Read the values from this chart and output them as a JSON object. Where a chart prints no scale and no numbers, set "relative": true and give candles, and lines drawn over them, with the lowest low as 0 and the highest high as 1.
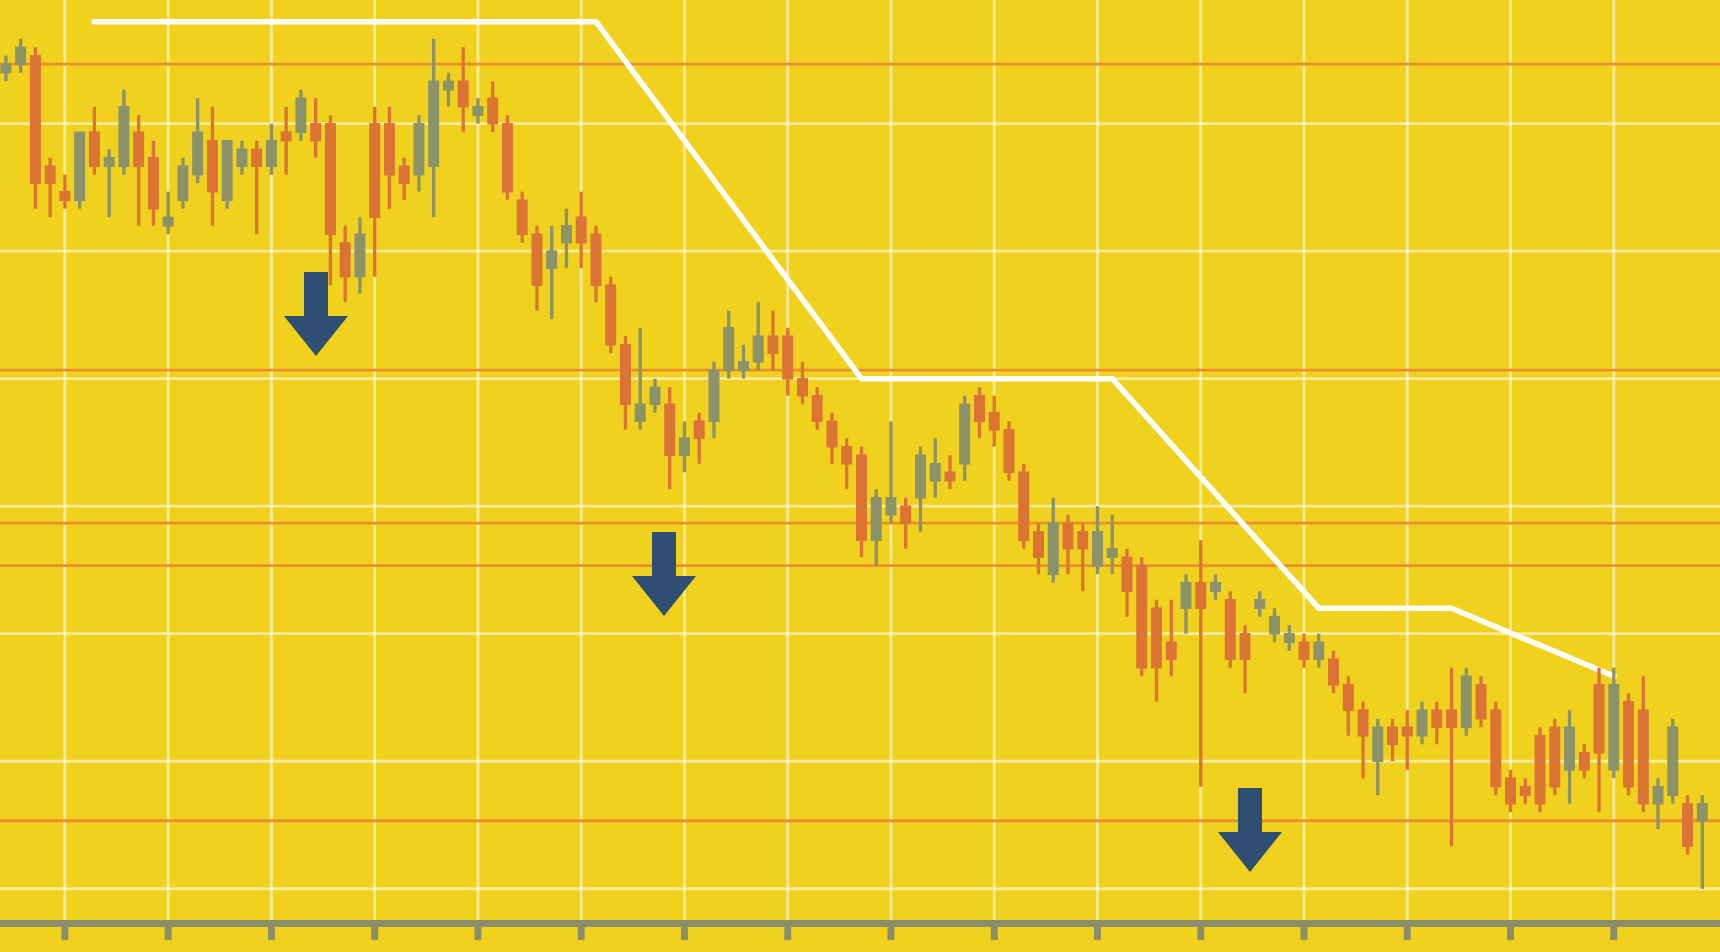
{
  "chart_data": {
    "type": "candlestick",
    "relative": true,
    "grid": true,
    "categories": [
      null,
      null,
      null,
      null,
      null,
      null,
      null,
      null,
      null,
      null,
      null,
      null,
      null,
      null,
      null,
      null,
      null,
      null,
      null,
      null,
      null,
      null,
      null,
      null,
      null,
      null,
      null,
      null,
      null,
      null,
      null,
      null,
      null,
      null,
      null,
      null,
      null,
      null,
      null,
      null,
      null,
      null,
      null,
      null,
      null,
      null,
      null,
      null,
      null,
      null,
      null,
      null,
      null,
      null,
      null,
      null,
      null,
      null,
      null,
      null,
      null,
      null,
      null,
      null,
      null,
      null,
      null,
      null,
      null,
      null,
      null,
      null,
      null,
      null,
      null,
      null,
      null,
      null,
      null,
      null,
      null,
      null,
      null,
      null,
      null,
      null,
      null,
      null,
      null,
      null,
      null,
      null,
      null,
      null,
      null,
      null,
      null,
      null,
      null,
      null,
      null,
      null,
      null,
      null,
      null,
      null,
      null,
      null,
      null,
      null,
      null,
      null,
      null,
      null,
      null,
      null
    ],
    "ohlc": [
      [
        0.96,
        0.98,
        0.95,
        0.97
      ],
      [
        0.97,
        1.0,
        0.96,
        0.99
      ],
      [
        0.98,
        0.99,
        0.8,
        0.83
      ],
      [
        0.85,
        0.86,
        0.79,
        0.83
      ],
      [
        0.82,
        0.84,
        0.8,
        0.81
      ],
      [
        0.81,
        0.89,
        0.8,
        0.89
      ],
      [
        0.89,
        0.92,
        0.84,
        0.85
      ],
      [
        0.85,
        0.87,
        0.79,
        0.86
      ],
      [
        0.85,
        0.94,
        0.84,
        0.92
      ],
      [
        0.89,
        0.91,
        0.78,
        0.85
      ],
      [
        0.86,
        0.88,
        0.78,
        0.8
      ],
      [
        0.78,
        0.82,
        0.77,
        0.79
      ],
      [
        0.81,
        0.86,
        0.8,
        0.85
      ],
      [
        0.84,
        0.93,
        0.83,
        0.89
      ],
      [
        0.88,
        0.92,
        0.78,
        0.82
      ],
      [
        0.81,
        0.88,
        0.8,
        0.88
      ],
      [
        0.85,
        0.88,
        0.84,
        0.87
      ],
      [
        0.87,
        0.88,
        0.77,
        0.85
      ],
      [
        0.85,
        0.9,
        0.84,
        0.88
      ],
      [
        0.89,
        0.92,
        0.84,
        0.88
      ],
      [
        0.89,
        0.94,
        0.88,
        0.93
      ],
      [
        0.9,
        0.93,
        0.86,
        0.88
      ],
      [
        0.9,
        0.91,
        0.71,
        0.77
      ],
      [
        0.76,
        0.78,
        0.69,
        0.72
      ],
      [
        0.72,
        0.79,
        0.7,
        0.77
      ],
      [
        0.9,
        0.92,
        0.72,
        0.79
      ],
      [
        0.9,
        0.92,
        0.8,
        0.84
      ],
      [
        0.85,
        0.86,
        0.81,
        0.83
      ],
      [
        0.84,
        0.91,
        0.82,
        0.9
      ],
      [
        0.85,
        1.0,
        0.79,
        0.95
      ],
      [
        0.94,
        0.96,
        0.92,
        0.95
      ],
      [
        0.95,
        0.99,
        0.89,
        0.92
      ],
      [
        0.91,
        0.93,
        0.9,
        0.92
      ],
      [
        0.93,
        0.95,
        0.89,
        0.9
      ],
      [
        0.9,
        0.91,
        0.81,
        0.82
      ],
      [
        0.81,
        0.82,
        0.76,
        0.77
      ],
      [
        0.77,
        0.78,
        0.68,
        0.71
      ],
      [
        0.73,
        0.78,
        0.67,
        0.75
      ],
      [
        0.76,
        0.8,
        0.73,
        0.78
      ],
      [
        0.79,
        0.82,
        0.73,
        0.76
      ],
      [
        0.77,
        0.78,
        0.69,
        0.71
      ],
      [
        0.71,
        0.72,
        0.63,
        0.64
      ],
      [
        0.64,
        0.65,
        0.54,
        0.57
      ],
      [
        0.55,
        0.66,
        0.54,
        0.57
      ],
      [
        0.57,
        0.6,
        0.56,
        0.59
      ],
      [
        0.57,
        0.59,
        0.47,
        0.51
      ],
      [
        0.51,
        0.55,
        0.49,
        0.53
      ],
      [
        0.55,
        0.56,
        0.5,
        0.53
      ],
      [
        0.55,
        0.62,
        0.53,
        0.61
      ],
      [
        0.61,
        0.68,
        0.6,
        0.66
      ],
      [
        0.61,
        0.64,
        0.6,
        0.62
      ],
      [
        0.62,
        0.69,
        0.61,
        0.65
      ],
      [
        0.65,
        0.68,
        0.61,
        0.63
      ],
      [
        0.65,
        0.66,
        0.58,
        0.6
      ],
      [
        0.6,
        0.62,
        0.57,
        0.58
      ],
      [
        0.58,
        0.59,
        0.54,
        0.55
      ],
      [
        0.55,
        0.56,
        0.5,
        0.52
      ],
      [
        0.52,
        0.53,
        0.47,
        0.5
      ],
      [
        0.51,
        0.52,
        0.39,
        0.41
      ],
      [
        0.41,
        0.47,
        0.38,
        0.46
      ],
      [
        0.44,
        0.55,
        0.43,
        0.46
      ],
      [
        0.45,
        0.46,
        0.4,
        0.43
      ],
      [
        0.46,
        0.52,
        0.42,
        0.51
      ],
      [
        0.48,
        0.53,
        0.46,
        0.5
      ],
      [
        0.49,
        0.51,
        0.47,
        0.48
      ],
      [
        0.5,
        0.58,
        0.48,
        0.57
      ],
      [
        0.58,
        0.59,
        0.53,
        0.55
      ],
      [
        0.56,
        0.58,
        0.52,
        0.54
      ],
      [
        0.54,
        0.55,
        0.48,
        0.49
      ],
      [
        0.49,
        0.5,
        0.4,
        0.41
      ],
      [
        0.42,
        0.43,
        0.37,
        0.39
      ],
      [
        0.37,
        0.46,
        0.36,
        0.43
      ],
      [
        0.43,
        0.44,
        0.37,
        0.4
      ],
      [
        0.42,
        0.43,
        0.35,
        0.4
      ],
      [
        0.38,
        0.45,
        0.37,
        0.42
      ],
      [
        0.39,
        0.44,
        0.37,
        0.4
      ],
      [
        0.39,
        0.4,
        0.32,
        0.35
      ],
      [
        0.38,
        0.39,
        0.25,
        0.26
      ],
      [
        0.33,
        0.34,
        0.22,
        0.26
      ],
      [
        0.29,
        0.34,
        0.25,
        0.27
      ],
      [
        0.33,
        0.37,
        0.3,
        0.36
      ],
      [
        0.36,
        0.41,
        0.12,
        0.33
      ],
      [
        0.35,
        0.37,
        0.34,
        0.36
      ],
      [
        0.34,
        0.35,
        0.26,
        0.27
      ],
      [
        0.3,
        0.31,
        0.23,
        0.27
      ],
      [
        0.33,
        0.35,
        0.32,
        0.34
      ],
      [
        0.3,
        0.33,
        0.29,
        0.32
      ],
      [
        0.29,
        0.31,
        0.28,
        0.3
      ],
      [
        0.29,
        0.3,
        0.26,
        0.27
      ],
      [
        0.27,
        0.3,
        0.26,
        0.29
      ],
      [
        0.27,
        0.28,
        0.23,
        0.24
      ],
      [
        0.24,
        0.25,
        0.18,
        0.21
      ],
      [
        0.21,
        0.22,
        0.13,
        0.18
      ],
      [
        0.15,
        0.2,
        0.11,
        0.19
      ],
      [
        0.19,
        0.2,
        0.15,
        0.17
      ],
      [
        0.19,
        0.21,
        0.14,
        0.18
      ],
      [
        0.18,
        0.22,
        0.17,
        0.21
      ],
      [
        0.21,
        0.22,
        0.17,
        0.19
      ],
      [
        0.21,
        0.26,
        0.05,
        0.19
      ],
      [
        0.19,
        0.26,
        0.18,
        0.25
      ],
      [
        0.24,
        0.25,
        0.19,
        0.2
      ],
      [
        0.21,
        0.22,
        0.11,
        0.12
      ],
      [
        0.13,
        0.14,
        0.09,
        0.1
      ],
      [
        0.12,
        0.13,
        0.1,
        0.11
      ],
      [
        0.18,
        0.19,
        0.09,
        0.1
      ],
      [
        0.19,
        0.2,
        0.11,
        0.12
      ],
      [
        0.14,
        0.21,
        0.1,
        0.19
      ],
      [
        0.16,
        0.17,
        0.13,
        0.14
      ],
      [
        0.24,
        0.26,
        0.09,
        0.16
      ],
      [
        0.14,
        0.26,
        0.13,
        0.24
      ],
      [
        0.22,
        0.23,
        0.11,
        0.12
      ],
      [
        0.21,
        0.25,
        0.09,
        0.1
      ],
      [
        0.1,
        0.13,
        0.07,
        0.12
      ],
      [
        0.11,
        0.2,
        0.1,
        0.19
      ],
      [
        0.1,
        0.11,
        0.04,
        0.05
      ],
      [
        0.08,
        0.11,
        0.0,
        0.1
      ]
    ],
    "series": [
      {
        "type": "line",
        "color": "#ffffff",
        "values": [
          null,
          null,
          null,
          null,
          null,
          null,
          1.02,
          null,
          null,
          null,
          null,
          null,
          null,
          null,
          null,
          null,
          null,
          null,
          null,
          null,
          null,
          null,
          null,
          null,
          null,
          null,
          null,
          null,
          null,
          null,
          null,
          null,
          null,
          null,
          null,
          null,
          null,
          null,
          null,
          null,
          1.02,
          null,
          null,
          null,
          null,
          null,
          null,
          null,
          null,
          null,
          null,
          null,
          null,
          null,
          null,
          null,
          null,
          null,
          0.6,
          null,
          null,
          null,
          null,
          null,
          null,
          null,
          null,
          null,
          null,
          null,
          null,
          null,
          null,
          null,
          null,
          0.6,
          null,
          null,
          null,
          null,
          null,
          null,
          null,
          null,
          null,
          null,
          null,
          null,
          null,
          0.33,
          null,
          null,
          null,
          null,
          null,
          null,
          null,
          null,
          0.33,
          null,
          null,
          null,
          null,
          null,
          null,
          null,
          null,
          null,
          null,
          0.25,
          null,
          null,
          null,
          null,
          null,
          null
        ]
      }
    ],
    "ref_lines": [
      {
        "axis": "y",
        "value": 0.97,
        "color": "#e8912c"
      },
      {
        "axis": "y",
        "value": 0.61,
        "color": "#e8912c"
      },
      {
        "axis": "y",
        "value": 0.43,
        "color": "#e8912c"
      },
      {
        "axis": "y",
        "value": 0.38,
        "color": "#e8912c"
      },
      {
        "axis": "y",
        "value": 0.08,
        "color": "#e8912c"
      }
    ]
  }
}
